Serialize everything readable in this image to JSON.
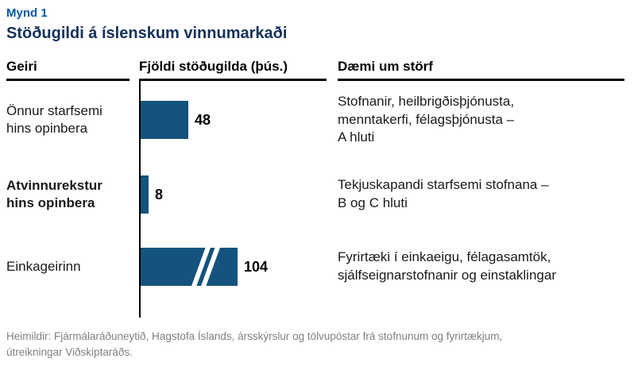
{
  "figure_label": "Mynd 1",
  "title": "Stöðugildi á íslenskum vinnumarkaði",
  "headers": {
    "sector": "Geiri",
    "count": "Fjöldi stöðugilda (þús.)",
    "examples": "Dæmi um störf"
  },
  "rows": [
    {
      "label": "Önnur starfsemi\nhins opinbera",
      "bold": false,
      "value_label": "48",
      "description": "Stofnanir, heilbrigðisþjónusta,\nmenntakerfi, félagsþjónusta –\nA hluti"
    },
    {
      "label": "Atvinnurekstur\nhins opinbera",
      "bold": true,
      "value_label": "8",
      "description": "Tekjuskapandi starfsemi stofnana –\nB og C hluti"
    },
    {
      "label": "Einkageirinn",
      "bold": false,
      "value_label": "104",
      "description": "Fyrirtæki í einkaeigu, félagasamtök,\nsjálfseignarstofnanir og einstaklingar"
    }
  ],
  "chart_data": {
    "type": "bar",
    "orientation": "horizontal",
    "title": "Stöðugildi á íslenskum vinnumarkaði",
    "value_axis_label": "Fjöldi stöðugilda (þús.)",
    "unit": "þús.",
    "categories": [
      "Önnur starfsemi hins opinbera",
      "Atvinnurekstur hins opinbera",
      "Einkageirinn"
    ],
    "values": [
      48,
      8,
      104
    ],
    "bar_color": "#14537d",
    "axis_break": {
      "bar_index": 2,
      "note": "bar for 104 truncated with double break marks"
    },
    "grid": false,
    "legend": "none"
  },
  "colors": {
    "figure_label": "#0057a3",
    "title": "#16325b",
    "bar": "#14537d",
    "header_rule": "#000000",
    "footer_text": "#808080"
  },
  "footer": "Heimildir: Fjármálaráðuneytið, Hagstofa Íslands, ársskýrslur og tölvupóstar frá stofnunum og fyrirtækjum,\nútreikningar Viðskiptaráðs."
}
